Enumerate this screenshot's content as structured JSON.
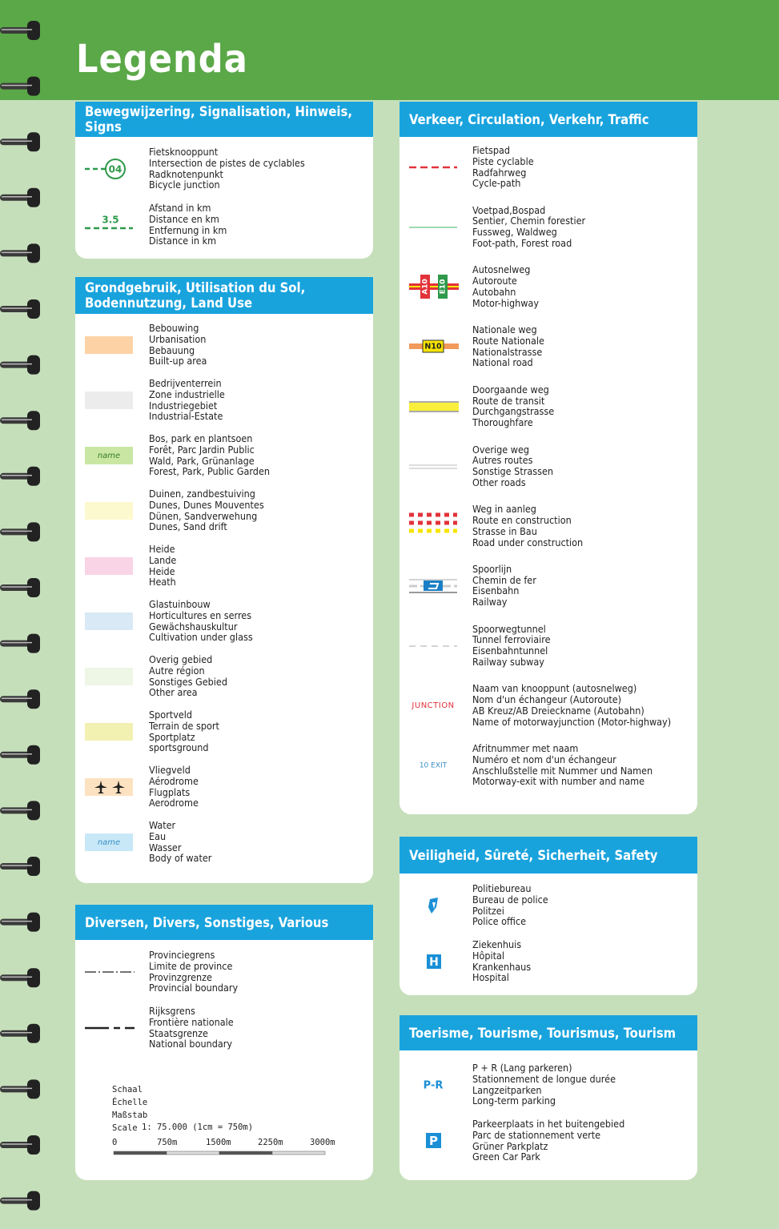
{
  "title": "Legenda",
  "sections": [
    {
      "title": [
        "Bewegwijzering, Signalisation, Hinweis, Signs"
      ],
      "items": [
        {
          "symbol": "04",
          "lines": [
            "Fietsknooppunt",
            "Intersection de pistes de cyclables",
            "Radknotenpunkt",
            "Bicycle junction"
          ]
        },
        {
          "symbol": "3.5",
          "lines": [
            "Afstand in km",
            "Distance en km",
            "Entfernung in km",
            "Distance in km"
          ]
        }
      ]
    },
    {
      "title": [
        "Grondgebruik, Utilisation du Sol,",
        "Bodennutzung, Land Use"
      ],
      "items": [
        {
          "lines": [
            "Bebouwing",
            "Urbanisation",
            "Bebauung",
            "Built-up area"
          ]
        },
        {
          "lines": [
            "Bedrijventerrein",
            "Zone industrielle",
            "Industriegebiet",
            "Industrial-Estate"
          ]
        },
        {
          "symbol": "name",
          "lines": [
            "Bos, park en plantsoen",
            "Forêt, Parc Jardin Public",
            "Wald, Park, Grünanlage",
            "Forest, Park, Public Garden"
          ]
        },
        {
          "lines": [
            "Duinen, zandbestuiving",
            "Dunes, Dunes Mouventes",
            "Dünen, Sandverwehung",
            "Dunes, Sand drift"
          ]
        },
        {
          "lines": [
            "Heide",
            "Lande",
            "Heide",
            "Heath"
          ]
        },
        {
          "lines": [
            "Glastuinbouw",
            "Horticultures en serres",
            "Gewächshauskultur",
            "Cultivation under glass"
          ]
        },
        {
          "lines": [
            "Overig gebied",
            "Autre région",
            "Sonstiges Gebied",
            "Other area"
          ]
        },
        {
          "lines": [
            "Sportveld",
            "Terrain de sport",
            "Sportplatz",
            "sportsground"
          ]
        },
        {
          "lines": [
            "Vliegveld",
            "Aérodrome",
            "Flugplats",
            "Aerodrome"
          ]
        },
        {
          "symbol": "name",
          "lines": [
            "Water",
            "Eau",
            "Wasser",
            "Body of water"
          ]
        }
      ]
    },
    {
      "title": [
        "Diversen, Divers, Sonstiges, Various"
      ],
      "items": [
        {
          "lines": [
            "Provinciegrens",
            "Limite de province",
            "Provinzgrenze",
            "Provincial boundary"
          ]
        },
        {
          "lines": [
            "Rijksgrens",
            "Frontière nationale",
            "Staatsgrenze",
            "National boundary"
          ]
        }
      ]
    },
    {
      "title": [
        "Verkeer, Circulation, Verkehr, Traffic"
      ],
      "items": [
        {
          "lines": [
            "Fietspad",
            "Piste cyclable",
            "Radfahrweg",
            "Cycle-path"
          ]
        },
        {
          "lines": [
            "Voetpad,Bospad",
            "Sentier, Chemin forestier",
            "Fussweg, Waldweg",
            "Foot-path, Forest road"
          ]
        },
        {
          "symbol": [
            "A10",
            "E10"
          ],
          "lines": [
            "Autosnelweg",
            "Autoroute",
            "Autobahn",
            "Motor-highway"
          ]
        },
        {
          "symbol": "N10",
          "lines": [
            "Nationale weg",
            "Route Nationale",
            "Nationalstrasse",
            "National road"
          ]
        },
        {
          "lines": [
            "Doorgaande weg",
            "Route de transit",
            "Durchgangstrasse",
            "Thoroughfare"
          ]
        },
        {
          "lines": [
            "Overige weg",
            "Autres routes",
            "Sonstige Strassen",
            "Other roads"
          ]
        },
        {
          "lines": [
            "Weg in aanleg",
            "Route en construction",
            "Strasse in Bau",
            "Road under construction"
          ]
        },
        {
          "lines": [
            "Spoorlijn",
            "Chemin de fer",
            "Eisenbahn",
            "Railway"
          ]
        },
        {
          "lines": [
            "Spoorwegtunnel",
            "Tunnel ferroviaire",
            "Eisenbahntunnel",
            "Railway subway"
          ]
        },
        {
          "symbol": "JUNCTION",
          "lines": [
            "Naam van knooppunt (autosnelweg)",
            "Nom d'un échangeur (Autoroute)",
            "AB Kreuz/AB Dreieckname (Autobahn)",
            "Name of motorwayjunction (Motor-highway)"
          ]
        },
        {
          "symbol": "10 EXIT",
          "lines": [
            "Afritnummer met naam",
            "Numéro et nom d'un échangeur",
            "Anschlußstelle mit Nummer und Namen",
            "Motorway-exit with number and name"
          ]
        }
      ]
    },
    {
      "title": [
        "Veiligheid, Sûreté, Sicherheit, Safety"
      ],
      "items": [
        {
          "lines": [
            "Politiebureau",
            "Bureau de police",
            "Politzei",
            "Police office"
          ]
        },
        {
          "symbol": "H",
          "lines": [
            "Ziekenhuis",
            "Hôpital",
            "Krankenhaus",
            "Hospital"
          ]
        }
      ]
    },
    {
      "title": [
        "Toerisme, Tourisme, Tourismus, Tourism"
      ],
      "items": [
        {
          "symbol": "P-R",
          "lines": [
            "P + R (Lang parkeren)",
            "Stationnement de longue durée",
            "Langzeitparken",
            "Long-term parking"
          ]
        },
        {
          "symbol": "P",
          "lines": [
            "Parkeerplaats in het buitengebied",
            "Parc de stationnement verte",
            "Grüner Parkplatz",
            "Green Car Park"
          ]
        }
      ]
    }
  ],
  "scale": {
    "labels": [
      "Schaal",
      "Échelle",
      "Maßstab",
      "Scale"
    ],
    "ratio": "1: 75.000 (1cm = 750m)",
    "ticks": [
      "0",
      "750m",
      "1500m",
      "2250m",
      "3000m"
    ]
  }
}
